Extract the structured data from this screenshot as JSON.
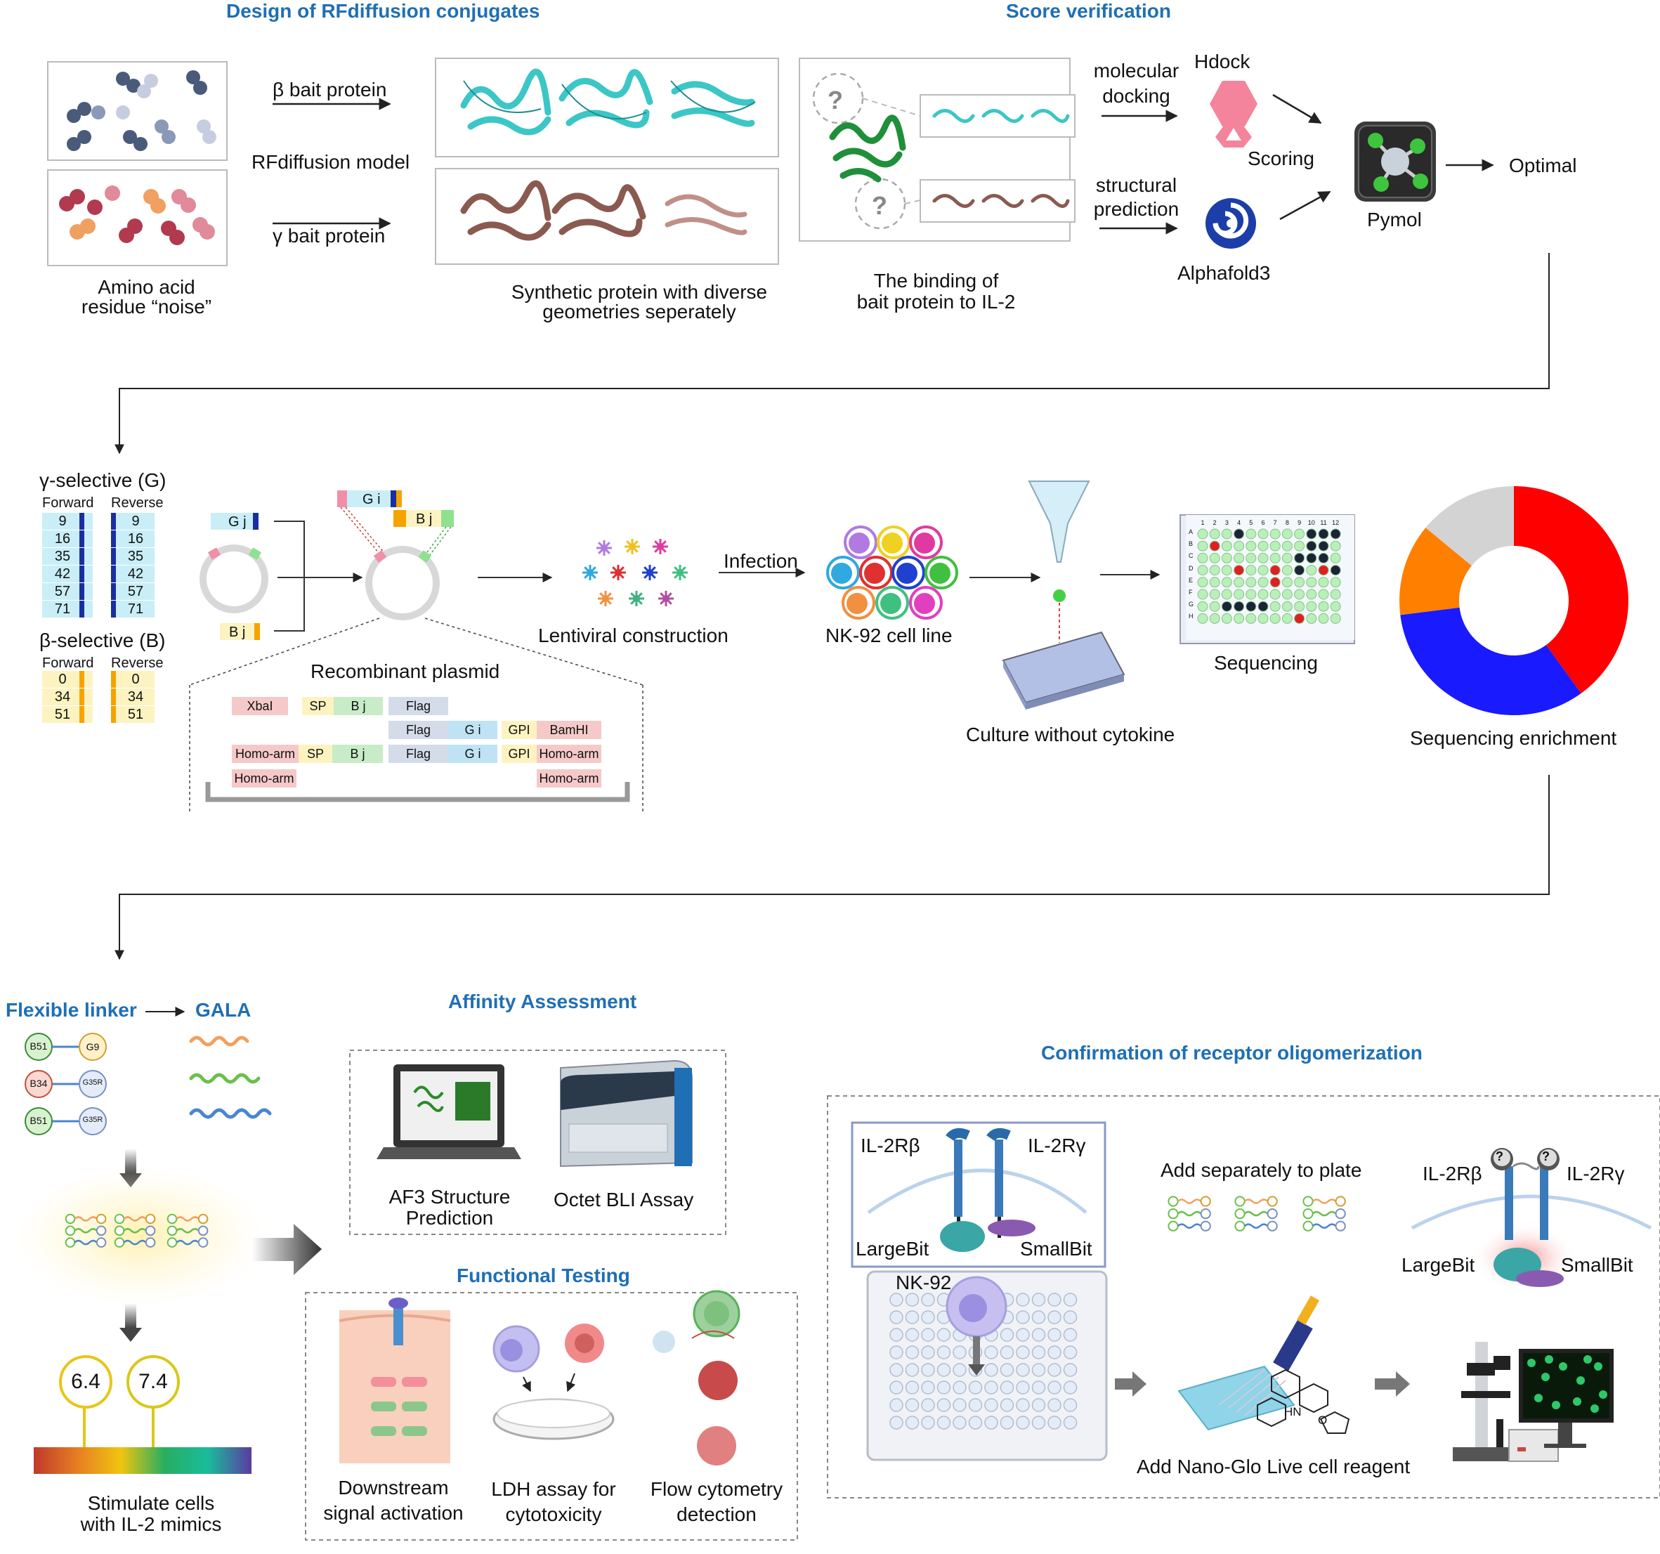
{
  "section1": {
    "title": "Design of RFdiffusion conjugates",
    "beta_bait": "β bait protein",
    "model": "RFdiffusion model",
    "gamma_bait": "γ bait protein",
    "noise_label_1": "Amino acid",
    "noise_label_2": "residue “noise”",
    "synthetic_label_1": "Synthetic protein with diverse",
    "synthetic_label_2": "geometries seperately"
  },
  "section2": {
    "title": "Score verification",
    "binding_label_1": "The binding of",
    "binding_label_2": "bait protein to IL-2",
    "question_mark": "?",
    "molecular_1": "molecular",
    "molecular_2": "docking",
    "structural_1": "structural",
    "structural_2": "prediction",
    "hdock": "Hdock",
    "scoring": "Scoring",
    "alphafold": "Alphafold3",
    "pymol": "Pymol",
    "optimal": "Optimal"
  },
  "library": {
    "gamma_title": "γ-selective (G)",
    "beta_title": "β-selective (B)",
    "forward": "Forward",
    "reverse": "Reverse",
    "gamma_values": [
      "9",
      "16",
      "35",
      "42",
      "57",
      "71"
    ],
    "beta_values": [
      "0",
      "34",
      "51"
    ],
    "colors": {
      "gamma_fill": "#c9eef7",
      "gamma_bar": "#1a2f9e",
      "beta_fill": "#fdf3c0",
      "beta_bar": "#f5a300"
    }
  },
  "plasmid": {
    "gj": "G j",
    "bj": "B j",
    "gi": "G i",
    "bj2": "B j",
    "title": "Recombinant plasmid",
    "row1": [
      "XbaI",
      "SP",
      "B j",
      "Flag"
    ],
    "row2": [
      "Flag",
      "G i",
      "GPI",
      "BamHI"
    ],
    "row3": [
      "Homo-arm",
      "SP",
      "B j",
      "Flag",
      "G i",
      "GPI",
      "Homo-arm"
    ],
    "row4": [
      "Homo-arm",
      "Homo-arm"
    ]
  },
  "workflow": {
    "lentiviral": "Lentiviral construction",
    "infection": "Infection",
    "nk92": "NK-92 cell line",
    "culture": "Culture without cytokine",
    "sequencing": "Sequencing",
    "enrichment": "Sequencing enrichment",
    "plate_cols": [
      "1",
      "2",
      "3",
      "4",
      "5",
      "6",
      "7",
      "8",
      "9",
      "10",
      "11",
      "12"
    ],
    "plate_rows": [
      "A",
      "B",
      "C",
      "D",
      "E",
      "F",
      "G",
      "H"
    ]
  },
  "donut": {
    "slices": [
      {
        "color": "#ff0000",
        "value": 40
      },
      {
        "color": "#1a1aff",
        "value": 33
      },
      {
        "color": "#ff8000",
        "value": 13
      },
      {
        "color": "#d3d3d3",
        "value": 14
      }
    ]
  },
  "section3": {
    "flexible": "Flexible linker",
    "gala": "GALA",
    "pairs": [
      [
        "B51",
        "G9"
      ],
      [
        "B34",
        "G35R"
      ],
      [
        "B51",
        "G35R"
      ]
    ],
    "ph1": "6.4",
    "ph2": "7.4",
    "stim_1": "Stimulate cells",
    "stim_2": "with IL-2 mimics"
  },
  "affinity": {
    "title": "Affinity Assessment",
    "af3_1": "AF3 Structure",
    "af3_2": "Prediction",
    "octet": "Octet BLI Assay"
  },
  "functional": {
    "title": "Functional Testing",
    "down_1": "Downstream",
    "down_2": "signal activation",
    "ldh_1": "LDH assay for",
    "ldh_2": "cytotoxicity",
    "flow_1": "Flow cytometry",
    "flow_2": "detection"
  },
  "oligo": {
    "title": "Confirmation of receptor oligomerization",
    "il2rb": "IL-2Rβ",
    "il2rg": "IL-2Rγ",
    "largebit": "LargeBit",
    "smallbit": "SmallBit",
    "nk92": "NK-92",
    "add_sep": "Add separately to plate",
    "nano": "Add Nano-Glo Live cell reagent",
    "il2rb2": "IL-2Rβ",
    "il2rg2": "IL-2Rγ",
    "largebit2": "LargeBit",
    "smallbit2": "SmallBit",
    "hn": "HN",
    "o": "O"
  }
}
